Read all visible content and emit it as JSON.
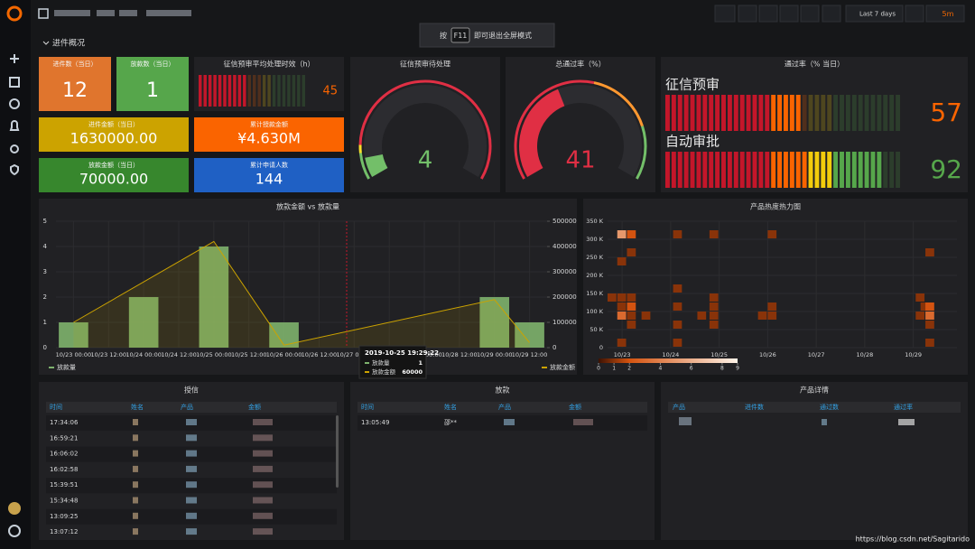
{
  "topbar": {
    "time_range": "Last 7 days",
    "refresh": "5m"
  },
  "fullscreen_hint": {
    "prefix": "按",
    "key": "F11",
    "suffix": "即可退出全屏模式"
  },
  "row_title": "进件概况",
  "stats": [
    {
      "title": "进件数（当日）",
      "value": 12,
      "color": "#e0752d"
    },
    {
      "title": "放款数（当日）",
      "value": 1,
      "color": "#56a64b"
    },
    {
      "title": "进件金额（当日）",
      "value": "1630000.00",
      "color": "#cca300"
    },
    {
      "title": "累计授款金额",
      "value": "¥4.630M",
      "color": "#fa6400"
    },
    {
      "title": "放款金额（当日）",
      "value": "70000.00",
      "color": "#37872d"
    },
    {
      "title": "累计申请人数",
      "value": 144,
      "color": "#1f60c4"
    }
  ],
  "gauges": [
    {
      "title": "征信预审待处理",
      "value": 4,
      "range": [
        0,
        50
      ],
      "color": "#73bf69"
    },
    {
      "title": "总通过率（%）",
      "value": 41,
      "range": [
        0,
        100
      ],
      "color": "#e02f44"
    }
  ],
  "bar_gauges": [
    {
      "title": "征信预审平均处理时效（h）",
      "range": [
        0,
        100
      ],
      "items": [
        {
          "value": 45
        }
      ]
    },
    {
      "title": "通过率（% 当日）",
      "range": [
        0,
        100
      ],
      "items": [
        {
          "name": "征信预审",
          "value": 57
        },
        {
          "name": "自动审批",
          "value": 92
        }
      ]
    }
  ],
  "chart_data": [
    {
      "type": "bar-line",
      "title": "放款金额 vs 放款量",
      "grid": true,
      "categories": [
        "10/23 00:00",
        "10/23 12:00",
        "10/24 00:00",
        "10/24 12:00",
        "10/25 00:00",
        "10/25 12:00",
        "10/26 00:00",
        "10/26 12:00",
        "10/27 00:00",
        "10/27 12:00",
        "10/28 00:00",
        "10/28 12:00",
        "10/29 00:00",
        "10/29 12:00"
      ],
      "ylim": [
        0,
        5
      ],
      "yticks": [
        0,
        1,
        2,
        3,
        4,
        5
      ],
      "y2lim": [
        0,
        500000
      ],
      "y2ticks": [
        0,
        100000,
        200000,
        300000,
        400000,
        500000
      ],
      "series": [
        {
          "name": "放款量",
          "type": "bar",
          "color": "#7eb26d",
          "x": [
            "10/23 00:00",
            "10/24 00:00",
            "10/25 00:00",
            "10/26 00:00",
            "10/29 00:00",
            "10/29 12:00"
          ],
          "values": [
            1,
            2,
            4,
            1,
            2,
            1
          ]
        },
        {
          "name": "放款金额",
          "type": "line",
          "axis": "y2",
          "color": "#cca300",
          "x": [
            "10/23 00:00",
            "10/25 00:00",
            "10/26 00:00",
            "10/29 00:00",
            "10/29 12:00"
          ],
          "values": [
            100000,
            420000,
            10000,
            190000,
            20000
          ]
        }
      ],
      "tooltip": {
        "time": "2019-10-25 19:29:22",
        "rows": [
          {
            "name": "放款量",
            "value": 1
          },
          {
            "name": "放款金额",
            "value": 60000
          }
        ]
      }
    },
    {
      "type": "heatmap",
      "title": "产品热度热力图",
      "xlim": [
        22.7,
        29.9
      ],
      "xticks": [
        {
          "value": 23,
          "label": "10/23"
        },
        {
          "value": 24,
          "label": "10/24"
        },
        {
          "value": 25,
          "label": "10/25"
        },
        {
          "value": 26,
          "label": "10/26"
        },
        {
          "value": 27,
          "label": "10/27"
        },
        {
          "value": 28,
          "label": "10/28"
        },
        {
          "value": 29,
          "label": "10/29"
        }
      ],
      "ylim": [
        0,
        350000
      ],
      "yticks": [
        0,
        {
          "value": 50000,
          "label": "50 K"
        },
        {
          "value": 100000,
          "label": "100 K"
        },
        {
          "value": 150000,
          "label": "150 K"
        },
        {
          "value": 200000,
          "label": "200 K"
        },
        {
          "value": 250000,
          "label": "250 K"
        },
        {
          "value": 300000,
          "label": "300 K"
        },
        {
          "value": 350000,
          "label": "350 K"
        }
      ],
      "x_bucket": 0.2,
      "y_bucket": 25000,
      "cells": [
        [
          22.9,
          300000,
          5
        ],
        [
          23.1,
          300000,
          2
        ],
        [
          23.1,
          250000,
          1
        ],
        [
          22.9,
          225000,
          1
        ],
        [
          22.7,
          125000,
          1
        ],
        [
          22.9,
          125000,
          1
        ],
        [
          23.1,
          125000,
          1
        ],
        [
          22.9,
          100000,
          1
        ],
        [
          23.1,
          100000,
          2
        ],
        [
          22.9,
          75000,
          3
        ],
        [
          23.1,
          75000,
          1
        ],
        [
          23.4,
          75000,
          1
        ],
        [
          23.1,
          50000,
          1
        ],
        [
          22.9,
          0,
          1
        ],
        [
          24.05,
          300000,
          1
        ],
        [
          24.8,
          300000,
          1
        ],
        [
          24.05,
          150000,
          1
        ],
        [
          24.05,
          100000,
          1
        ],
        [
          24.05,
          50000,
          1
        ],
        [
          24.05,
          0,
          1
        ],
        [
          24.8,
          125000,
          1
        ],
        [
          24.8,
          100000,
          1
        ],
        [
          24.8,
          75000,
          1
        ],
        [
          24.8,
          50000,
          1
        ],
        [
          24.55,
          75000,
          1
        ],
        [
          26.0,
          300000,
          1
        ],
        [
          26.0,
          100000,
          1
        ],
        [
          26.0,
          75000,
          1
        ],
        [
          25.8,
          75000,
          1
        ],
        [
          29.25,
          250000,
          1
        ],
        [
          29.15,
          100000,
          1
        ],
        [
          29.25,
          100000,
          2
        ],
        [
          29.05,
          75000,
          1
        ],
        [
          29.25,
          75000,
          3
        ],
        [
          29.25,
          50000,
          1
        ],
        [
          29.25,
          0,
          1
        ],
        [
          29.05,
          125000,
          1
        ]
      ],
      "scale": {
        "range": [
          0,
          9
        ],
        "ticks": [
          0,
          1,
          2,
          4,
          6,
          8,
          9
        ]
      }
    }
  ],
  "tables": [
    {
      "title": "授信",
      "columns": [
        "时间",
        "姓名",
        "产品",
        "金额"
      ],
      "rows": [
        {
          "time": "17:34:06"
        },
        {
          "time": "16:59:21"
        },
        {
          "time": "16:06:02"
        },
        {
          "time": "16:02:58"
        },
        {
          "time": "15:39:51"
        },
        {
          "time": "15:34:48"
        },
        {
          "time": "13:09:25"
        },
        {
          "time": "13:07:12"
        }
      ]
    },
    {
      "title": "放款",
      "columns": [
        "时间",
        "姓名",
        "产品",
        "金额"
      ],
      "rows": [
        {
          "time": "13:05:49",
          "name": "邵**"
        }
      ]
    },
    {
      "title": "产品详情",
      "columns": [
        "产品",
        "进件数",
        "通过数",
        "通过率"
      ],
      "rows": []
    }
  ],
  "watermark": "https://blog.csdn.net/Sagitarido"
}
